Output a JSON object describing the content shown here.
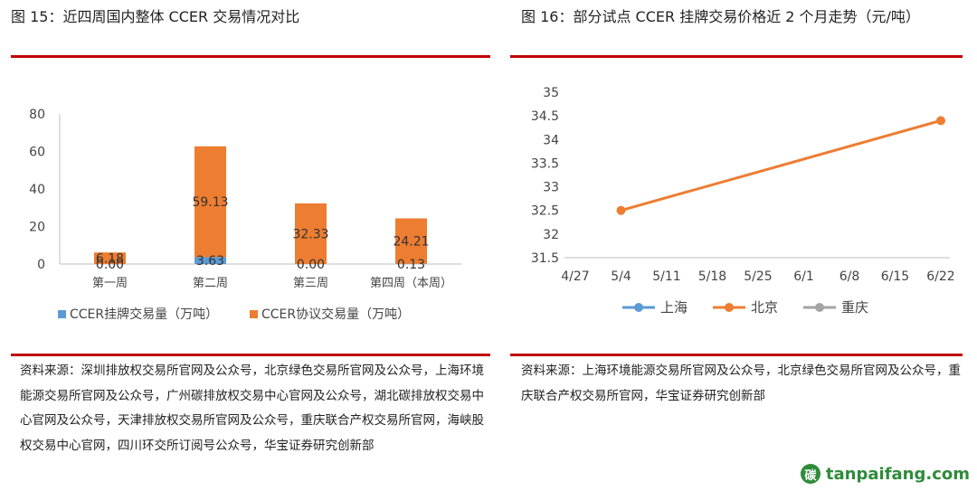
{
  "left": {
    "title": "图 15：近四周国内整体 CCER 交易情况对比",
    "source": "资料来源：深圳排放权交易所官网及公众号，北京绿色交易所官网及公众号，上海环境能源交易所官网及公众号，广州碳排放权交易中心官网及公众号，湖北碳排放权交易中心官网及公众号，天津排放权交易所官网及公众号，重庆联合产权交易所官网，海峡股权交易中心官网，四川环交所订阅号公众号，华宝证券研究创新部"
  },
  "right": {
    "title": "图 16：部分试点 CCER 挂牌交易价格近 2 个月走势（元/吨）",
    "source": "资料来源：上海环境能源交易所官网及公众号，北京绿色交易所官网及公众号，重庆联合产权交易所官网，华宝证券研究创新部"
  },
  "logo": {
    "text": "tanpaifang.com",
    "mark": "碳"
  },
  "chart_data": [
    {
      "type": "bar",
      "stacked": true,
      "categories": [
        "第一周",
        "第二周",
        "第三周",
        "第四周（本周）"
      ],
      "series": [
        {
          "name": "CCER挂牌交易量（万吨）",
          "values": [
            0.0,
            3.63,
            0.0,
            0.13
          ],
          "color": "#5b9bd5"
        },
        {
          "name": "CCER协议交易量（万吨）",
          "values": [
            6.18,
            59.13,
            32.33,
            24.21
          ],
          "color": "#ed7d31"
        }
      ],
      "ylim": [
        0,
        80
      ],
      "yticks": [
        0,
        20,
        40,
        60,
        80
      ],
      "legend": "bottom",
      "grid": false
    },
    {
      "type": "line",
      "x": [
        "4/27",
        "5/4",
        "5/11",
        "5/18",
        "5/25",
        "6/1",
        "6/8",
        "6/15",
        "6/22"
      ],
      "series": [
        {
          "name": "上海",
          "points": [],
          "color": "#5b9bd5"
        },
        {
          "name": "北京",
          "points": [
            {
              "x": "5/4",
              "y": 32.5
            },
            {
              "x": "6/22",
              "y": 34.4
            }
          ],
          "color": "#ed7d31"
        },
        {
          "name": "重庆",
          "points": [],
          "color": "#a5a5a5"
        }
      ],
      "ylim": [
        31.5,
        35
      ],
      "yticks": [
        31.5,
        32,
        32.5,
        33,
        33.5,
        34,
        34.5,
        35
      ],
      "legend": "bottom",
      "grid": false
    }
  ]
}
